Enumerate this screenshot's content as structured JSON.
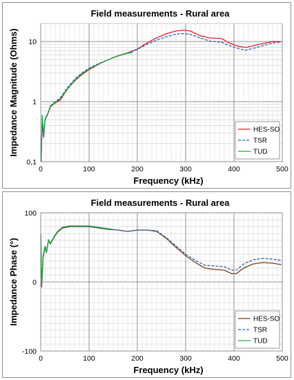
{
  "chart_data": [
    {
      "type": "line",
      "title": "Field measurements - Rural area",
      "xlabel": "Frequency (kHz)",
      "ylabel": "Impedance  Magnitude (Ohms)",
      "xlim": [
        0,
        500
      ],
      "ylim": [
        0.1,
        20
      ],
      "yscale": "log",
      "x_ticks": [
        "0",
        "100",
        "200",
        "300",
        "400",
        "500"
      ],
      "y_ticks": [
        "0,1",
        "1",
        "10"
      ],
      "grid": true,
      "legend_position": "bottom-right",
      "series": [
        {
          "name": "HES-SO",
          "color": "#e0202a",
          "dash": "solid",
          "points": [
            [
              1,
              0.12
            ],
            [
              3,
              0.45
            ],
            [
              6,
              0.25
            ],
            [
              9,
              0.5
            ],
            [
              14,
              0.6
            ],
            [
              20,
              0.82
            ],
            [
              30,
              0.95
            ],
            [
              40,
              1.05
            ],
            [
              55,
              1.6
            ],
            [
              70,
              2.2
            ],
            [
              85,
              2.8
            ],
            [
              100,
              3.4
            ],
            [
              120,
              4.2
            ],
            [
              140,
              5.0
            ],
            [
              160,
              5.8
            ],
            [
              180,
              6.5
            ],
            [
              200,
              7.5
            ],
            [
              220,
              9.5
            ],
            [
              240,
              11.5
            ],
            [
              260,
              13.5
            ],
            [
              280,
              15.0
            ],
            [
              295,
              15.5
            ],
            [
              310,
              15.0
            ],
            [
              330,
              12.5
            ],
            [
              350,
              11.5
            ],
            [
              375,
              11.2
            ],
            [
              390,
              9.5
            ],
            [
              410,
              8.3
            ],
            [
              425,
              8.0
            ],
            [
              440,
              8.5
            ],
            [
              460,
              9.3
            ],
            [
              480,
              10.0
            ],
            [
              498,
              10.0
            ]
          ]
        },
        {
          "name": "TSR",
          "color": "#2a5cbf",
          "dash": "dashed",
          "points": [
            [
              1,
              0.12
            ],
            [
              3,
              0.45
            ],
            [
              6,
              0.25
            ],
            [
              9,
              0.5
            ],
            [
              14,
              0.6
            ],
            [
              20,
              0.85
            ],
            [
              30,
              1.0
            ],
            [
              40,
              1.15
            ],
            [
              55,
              1.7
            ],
            [
              70,
              2.35
            ],
            [
              85,
              3.0
            ],
            [
              100,
              3.6
            ],
            [
              120,
              4.3
            ],
            [
              140,
              5.0
            ],
            [
              160,
              5.8
            ],
            [
              180,
              6.4
            ],
            [
              200,
              7.4
            ],
            [
              220,
              9.0
            ],
            [
              240,
              10.6
            ],
            [
              260,
              12.0
            ],
            [
              280,
              13.3
            ],
            [
              295,
              13.6
            ],
            [
              310,
              13.2
            ],
            [
              330,
              11.5
            ],
            [
              350,
              10.2
            ],
            [
              375,
              9.7
            ],
            [
              390,
              8.6
            ],
            [
              410,
              7.6
            ],
            [
              425,
              7.2
            ],
            [
              440,
              7.7
            ],
            [
              460,
              8.6
            ],
            [
              480,
              9.5
            ],
            [
              498,
              9.8
            ]
          ]
        },
        {
          "name": "TUD",
          "color": "#18a63a",
          "dash": "solid",
          "points": [
            [
              1,
              0.1
            ],
            [
              3,
              0.6
            ],
            [
              6,
              0.28
            ],
            [
              9,
              0.52
            ],
            [
              14,
              0.62
            ],
            [
              20,
              0.84
            ],
            [
              30,
              0.97
            ],
            [
              40,
              1.1
            ],
            [
              55,
              1.62
            ],
            [
              70,
              2.25
            ],
            [
              85,
              2.9
            ],
            [
              100,
              3.5
            ],
            [
              120,
              4.25
            ],
            [
              140,
              5.0
            ],
            [
              160,
              5.75
            ],
            [
              180,
              6.4
            ],
            [
              190,
              6.5
            ]
          ]
        }
      ]
    },
    {
      "type": "line",
      "title": "Field measurements - Rural area",
      "xlabel": "Frequency (kHz)",
      "ylabel": "Impedance  Phase (°)",
      "xlim": [
        0,
        500
      ],
      "ylim": [
        -100,
        100
      ],
      "x_ticks": [
        "0",
        "100",
        "200",
        "300",
        "400",
        "500"
      ],
      "y_ticks": [
        "-100",
        "0",
        "100"
      ],
      "grid": true,
      "legend_position": "bottom-right",
      "series": [
        {
          "name": "HES-SO",
          "color": "#7a3b16",
          "dash": "solid",
          "points": [
            [
              0,
              70
            ],
            [
              2,
              -8
            ],
            [
              5,
              35
            ],
            [
              9,
              50
            ],
            [
              12,
              42
            ],
            [
              16,
              60
            ],
            [
              20,
              55
            ],
            [
              28,
              65
            ],
            [
              35,
              72
            ],
            [
              45,
              78
            ],
            [
              60,
              80
            ],
            [
              80,
              80
            ],
            [
              100,
              80
            ],
            [
              120,
              78
            ],
            [
              140,
              76
            ],
            [
              160,
              75
            ],
            [
              180,
              73
            ],
            [
              200,
              75
            ],
            [
              220,
              75
            ],
            [
              240,
              73
            ],
            [
              260,
              63
            ],
            [
              280,
              50
            ],
            [
              300,
              38
            ],
            [
              320,
              28
            ],
            [
              340,
              20
            ],
            [
              360,
              18
            ],
            [
              380,
              17
            ],
            [
              395,
              12
            ],
            [
              405,
              12
            ],
            [
              420,
              20
            ],
            [
              440,
              26
            ],
            [
              460,
              28
            ],
            [
              480,
              27
            ],
            [
              498,
              25
            ]
          ]
        },
        {
          "name": "TSR",
          "color": "#2a5cbf",
          "dash": "dashed",
          "points": [
            [
              0,
              70
            ],
            [
              2,
              -5
            ],
            [
              5,
              37
            ],
            [
              9,
              52
            ],
            [
              12,
              44
            ],
            [
              16,
              61
            ],
            [
              20,
              56
            ],
            [
              28,
              66
            ],
            [
              35,
              73
            ],
            [
              45,
              79
            ],
            [
              60,
              81
            ],
            [
              80,
              81
            ],
            [
              100,
              80
            ],
            [
              120,
              78
            ],
            [
              140,
              76
            ],
            [
              160,
              75
            ],
            [
              180,
              73
            ],
            [
              200,
              75
            ],
            [
              220,
              75
            ],
            [
              240,
              74
            ],
            [
              260,
              64
            ],
            [
              280,
              52
            ],
            [
              300,
              40
            ],
            [
              320,
              31
            ],
            [
              340,
              24
            ],
            [
              360,
              23
            ],
            [
              380,
              22
            ],
            [
              395,
              17
            ],
            [
              405,
              17
            ],
            [
              420,
              26
            ],
            [
              440,
              32
            ],
            [
              460,
              34
            ],
            [
              480,
              33
            ],
            [
              498,
              31
            ]
          ]
        },
        {
          "name": "TUD",
          "color": "#18a63a",
          "dash": "solid",
          "points": [
            [
              0,
              65
            ],
            [
              2,
              -3
            ],
            [
              5,
              38
            ],
            [
              9,
              51
            ],
            [
              12,
              43
            ],
            [
              16,
              60
            ],
            [
              20,
              56
            ],
            [
              28,
              66
            ],
            [
              35,
              73
            ],
            [
              45,
              79
            ],
            [
              60,
              81
            ],
            [
              80,
              81
            ],
            [
              100,
              81
            ],
            [
              120,
              79
            ],
            [
              140,
              77
            ],
            [
              150,
              76
            ]
          ]
        }
      ]
    }
  ]
}
